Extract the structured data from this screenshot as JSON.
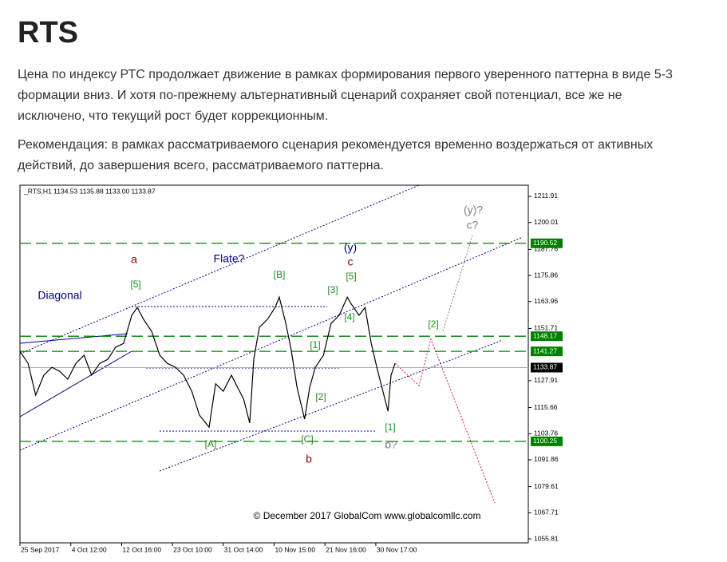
{
  "header": {
    "title": "RTS"
  },
  "paragraphs": [
    "Цена по индексу РТС продолжает движение в рамках формирования первого уверенного паттерна в виде 5-3 формации вниз. И хотя по-прежнему альтернативный сценарий сохраняет свой потенциал, все же не исключено, что текущий рост будет коррекционным.",
    "Рекомендация:  в рамках рассматриваемого сценария рекомендуется временно воздержаться от активных действий, до завершения всего, рассматриваемого паттерна."
  ],
  "chart_data": {
    "type": "line",
    "title": "_RTS,H1  1134.53 1135.88 1133.00 1133.87",
    "x": [
      0,
      1.6,
      3.1,
      4.7,
      6.3,
      7.8,
      9.4,
      11,
      12.6,
      14.1,
      15.7,
      17.3,
      18.8,
      20.4,
      22,
      23.1,
      24.3,
      25.9,
      27.5,
      29,
      30.6,
      32.2,
      33.8,
      35.3,
      37.2,
      38.5,
      40,
      41.6,
      43.2,
      44,
      45.2,
      46,
      47.1,
      48.7,
      50.2,
      51,
      52.3,
      53.4,
      54.5,
      56,
      57,
      58.1,
      59.7,
      61.2,
      62.8,
      64.4,
      65.1,
      66.7,
      67.9,
      69.1,
      70.2,
      71.4,
      72.4,
      73,
      73.8
    ],
    "values": [
      1141.3,
      1135.8,
      1121.3,
      1130.4,
      1134.0,
      1132.2,
      1128.6,
      1135.8,
      1139.5,
      1130.4,
      1135.8,
      1137.7,
      1143.1,
      1144.9,
      1157.7,
      1161.3,
      1155.9,
      1150.4,
      1139.5,
      1135.8,
      1134.0,
      1130.4,
      1123.1,
      1112.2,
      1106.7,
      1126.5,
      1123.1,
      1130.4,
      1123.1,
      1119.5,
      1108.6,
      1137.7,
      1152.2,
      1155.9,
      1161.3,
      1166.0,
      1154.0,
      1141.3,
      1124.9,
      1110.4,
      1124.9,
      1134.0,
      1139.5,
      1154.0,
      1157.7,
      1166.0,
      1163.1,
      1157.7,
      1161.3,
      1144.9,
      1134.0,
      1123.1,
      1114.0,
      1130.4,
      1135.8
    ],
    "color": "#000000",
    "xlim": [
      0,
      100
    ],
    "xticks": [
      {
        "value": 0,
        "label": "25 Sep 2017"
      },
      {
        "value": 10,
        "label": "4 Oct 12:00"
      },
      {
        "value": 20,
        "label": "12 Oct 16:00"
      },
      {
        "value": 30,
        "label": "23 Oct 10:00"
      },
      {
        "value": 40,
        "label": "31 Oct 14:00"
      },
      {
        "value": 50,
        "label": "10 Nov 15:00"
      },
      {
        "value": 60,
        "label": "21 Nov 16:00"
      },
      {
        "value": 70,
        "label": "30 Nov 17:00"
      }
    ],
    "ylim": [
      1054.0,
      1217.0
    ],
    "yticks": [
      1211.91,
      1200.01,
      1187.76,
      1175.86,
      1163.96,
      1151.71,
      1127.91,
      1115.66,
      1103.76,
      1091.86,
      1079.61,
      1067.71,
      1055.81
    ],
    "levels": [
      1190.52,
      1148.17,
      1141.27,
      1100.25
    ],
    "level_color": "#008000",
    "current_price": 1133.87,
    "annotations": [
      {
        "text": "a",
        "color": "#8b0000"
      },
      {
        "text": "Flate?",
        "color": "#000080"
      },
      {
        "text": "[5]",
        "color": "#228b22"
      },
      {
        "text": "[B]",
        "color": "#228b22"
      },
      {
        "text": "Diagonal",
        "color": "#000080"
      },
      {
        "text": "(y)",
        "color": "#000080"
      },
      {
        "text": "c",
        "color": "#8b0000"
      },
      {
        "text": "[3]",
        "color": "#228b22"
      },
      {
        "text": "[5]",
        "color": "#228b22"
      },
      {
        "text": "[4]",
        "color": "#228b22"
      },
      {
        "text": "[1]",
        "color": "#228b22"
      },
      {
        "text": "[2]",
        "color": "#228b22"
      },
      {
        "text": "[A]",
        "color": "#228b22"
      },
      {
        "text": "[C]",
        "color": "#228b22"
      },
      {
        "text": "b",
        "color": "#8b0000"
      },
      {
        "text": "[1]",
        "color": "#228b22"
      },
      {
        "text": "b?",
        "color": "#808080"
      },
      {
        "text": "[2]",
        "color": "#228b22"
      },
      {
        "text": "(y)?",
        "color": "#808080"
      },
      {
        "text": "c?",
        "color": "#808080"
      },
      {
        "text": "© December 2017 GlobalCom www.globalcomllc.com",
        "color": "#000000"
      }
    ]
  }
}
